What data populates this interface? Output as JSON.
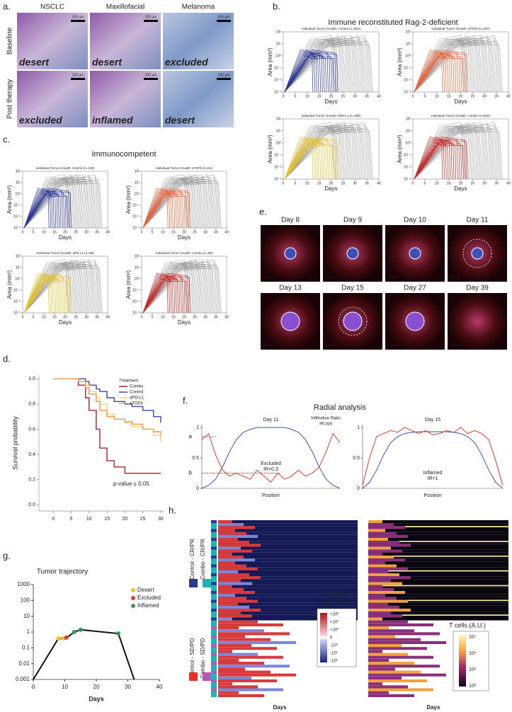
{
  "panel_a": {
    "label": "a.",
    "columns": [
      "NSCLC",
      "Maxillofacial",
      "Melanoma"
    ],
    "rows": [
      "Baseline",
      "Post therapy"
    ],
    "tags": [
      [
        "desert",
        "desert",
        "excluded"
      ],
      [
        "excluded",
        "inflamed",
        "desert"
      ]
    ],
    "scale_bars": [
      [
        "100 µm",
        "100 µm",
        "200 µm"
      ],
      [
        "100 µm",
        "100 µm",
        "100 µm"
      ]
    ]
  },
  "panel_b": {
    "label": "b.",
    "title": "Immune reconstituted Rag-2-deficient",
    "x_label": "Days",
    "y_label": "Area (mm²)",
    "xlim": [
      0,
      40
    ],
    "xticks": [
      0,
      5,
      10,
      15,
      20,
      25,
      30,
      35,
      40
    ],
    "ylim": [
      0.001,
      100
    ],
    "log_y": true,
    "yticks": [
      {
        "value": 0.001,
        "label": "10⁻³"
      },
      {
        "value": 0.01,
        "label": "10⁻²"
      },
      {
        "value": 0.1,
        "label": "10⁻¹"
      },
      {
        "value": 1,
        "label": "10⁰"
      },
      {
        "value": 10,
        "label": "10¹"
      },
      {
        "value": 100,
        "label": "10²"
      }
    ],
    "plots": [
      {
        "title": "Individual Tumor Growth: Control (n=554)",
        "color": "#2b3896"
      },
      {
        "title": "Individual Tumor Growth: aTGFb (n=287)",
        "color": "#e8643a"
      },
      {
        "title": "Individual Tumor Growth: aPD-L1 (n=399)",
        "color": "#e6c229"
      },
      {
        "title": "Individual Tumor Growth: Combo (n=842)",
        "color": "#c62828"
      }
    ]
  },
  "panel_c": {
    "label": "c.",
    "title": "Immunocompetent",
    "x_label": "Days",
    "y_label": "Area (mm²)",
    "xlim": [
      0,
      40
    ],
    "xticks": [
      0,
      5,
      10,
      15,
      20,
      25,
      30,
      35,
      40
    ],
    "ylim": [
      0.001,
      100
    ],
    "log_y": true,
    "yticks": [
      {
        "value": 0.001,
        "label": "10⁻³"
      },
      {
        "value": 0.01,
        "label": "10⁻²"
      },
      {
        "value": 0.1,
        "label": "10⁻¹"
      },
      {
        "value": 1,
        "label": "10⁰"
      },
      {
        "value": 10,
        "label": "10¹"
      },
      {
        "value": 100,
        "label": "10²"
      }
    ],
    "plots": [
      {
        "title": "Individual Tumor Growth: Control (n=130)",
        "color": "#2b3896"
      },
      {
        "title": "Individual Tumor Growth: aTGFb (n=61)",
        "color": "#e8643a"
      },
      {
        "title": "Individual Tumor Growth: aPD-L1 (n=59)",
        "color": "#e6c229"
      },
      {
        "title": "Individual Tumor Growth: Combo (n=69)",
        "color": "#c62828"
      }
    ]
  },
  "panel_e": {
    "label": "e.",
    "days": [
      "Day 8",
      "Day 9",
      "Day 10",
      "Day 11",
      "Day 13",
      "Day 15",
      "Day 27",
      "Day 39"
    ],
    "scale_bar": "500 µm"
  },
  "panel_d": {
    "label": "d.",
    "type": "step",
    "y_label": "Survival probability",
    "legend_title": "Treatment",
    "annotation": "p-value ≤ 0.05",
    "x": [
      0,
      5,
      7,
      9,
      10,
      12,
      13,
      15,
      17,
      20,
      22,
      25,
      28,
      30
    ],
    "xlim": [
      -4,
      31
    ],
    "xticks": [
      0,
      5,
      10,
      15,
      20,
      25,
      30
    ],
    "ylim": [
      -0.05,
      1.03
    ],
    "yticks": [
      {
        "value": 0,
        "label": "0.0"
      },
      {
        "value": 0.2,
        "label": "0.2"
      },
      {
        "value": 0.4,
        "label": "0.4"
      },
      {
        "value": 0.6,
        "label": "0.6"
      },
      {
        "value": 0.8,
        "label": "0.8"
      },
      {
        "value": 1,
        "label": "1.0"
      }
    ],
    "series": [
      {
        "name": "Combo",
        "color": "#a3262a",
        "values": [
          1,
          1,
          0.95,
          0.85,
          0.75,
          0.6,
          0.45,
          0.35,
          0.3,
          0.25,
          0.25,
          0.25,
          0.25,
          0.25
        ]
      },
      {
        "name": "Control",
        "color": "#3b4a9c",
        "values": [
          1,
          1,
          1,
          0.98,
          0.95,
          0.92,
          0.9,
          0.85,
          0.82,
          0.8,
          0.78,
          0.75,
          0.7,
          0.65
        ]
      },
      {
        "name": "aPD-L1",
        "color": "#f2d27a",
        "values": [
          1,
          1,
          0.98,
          0.95,
          0.9,
          0.85,
          0.8,
          0.72,
          0.68,
          0.65,
          0.62,
          0.6,
          0.55,
          0.5
        ]
      },
      {
        "name": "aTGFb",
        "color": "#ef9a4a",
        "values": [
          1,
          1,
          0.98,
          0.93,
          0.88,
          0.82,
          0.75,
          0.7,
          0.68,
          0.66,
          0.64,
          0.6,
          0.58,
          0.55
        ]
      }
    ]
  },
  "panel_f": {
    "label": "f.",
    "title": "Radial analysis",
    "x_label": "Position",
    "ylim": [
      0,
      1
    ],
    "yticks": [
      0,
      0.5,
      1
    ],
    "ratio_title": "Infiltration Ratio",
    "ratio_formula": "IR=a/b",
    "level_names": [
      "a",
      "b"
    ],
    "levels": [
      0.85,
      0.25
    ],
    "plots": [
      {
        "title": "Day 11",
        "state": "Excluded",
        "ratio": "IR=0.3",
        "blue": [
          0,
          0.05,
          0.15,
          0.35,
          0.6,
          0.8,
          0.92,
          0.97,
          1,
          1,
          1,
          1,
          1,
          0.97,
          0.92,
          0.8,
          0.6,
          0.35,
          0.15,
          0.05,
          0
        ],
        "red": [
          0.8,
          0.9,
          0.55,
          0.3,
          0.2,
          0.25,
          0.2,
          0.15,
          0.3,
          0.2,
          0.1,
          0.25,
          0.15,
          0.2,
          0.3,
          0.2,
          0.25,
          0.35,
          0.6,
          0.9,
          0.75
        ]
      },
      {
        "title": "Day 15",
        "state": "Inflamed",
        "ratio": "IR=1",
        "blue": [
          0,
          0.1,
          0.3,
          0.55,
          0.75,
          0.85,
          0.9,
          0.92,
          0.93,
          0.93,
          0.93,
          0.93,
          0.93,
          0.92,
          0.9,
          0.85,
          0.75,
          0.55,
          0.3,
          0.1,
          0
        ],
        "red": [
          0.05,
          0.5,
          0.85,
          0.9,
          0.95,
          0.92,
          1,
          0.95,
          0.9,
          0.95,
          0.88,
          0.9,
          0.95,
          0.92,
          1,
          0.9,
          0.95,
          0.9,
          0.8,
          0.45,
          0.05
        ]
      }
    ]
  },
  "panel_g": {
    "label": "g.",
    "type": "line",
    "title": "Tumor trajectory",
    "x_label": "Days",
    "log_y": true,
    "xlim": [
      0,
      40
    ],
    "xticks": [
      0,
      10,
      20,
      30,
      40
    ],
    "ylim": [
      0.001,
      1000
    ],
    "yticks": [
      0.001,
      0.01,
      0.1,
      1,
      10,
      100,
      1000
    ],
    "x": [
      0,
      8,
      10,
      11,
      13,
      15,
      27,
      32
    ],
    "values": [
      0.001,
      0.4,
      0.35,
      0.5,
      1,
      1.4,
      0.8,
      0.001
    ],
    "markers": [
      {
        "name": "Desert",
        "color": "#f2c12e",
        "x": [
          8,
          9.5
        ],
        "values": [
          0.4,
          0.4
        ]
      },
      {
        "name": "Excluded",
        "color": "#e53935",
        "x": [
          10.5
        ],
        "values": [
          0.45
        ]
      },
      {
        "name": "Inflamed",
        "color": "#2e9e4f",
        "x": [
          13,
          15,
          27
        ],
        "values": [
          1,
          1.4,
          0.8
        ]
      }
    ]
  },
  "panel_h": {
    "label": "h.",
    "x_label": "Days",
    "groups": [
      "Control - CR/PR",
      "Combo - CR/PR",
      "Control - SD/PD",
      "Combo - SD/PD"
    ],
    "group_colors": [
      "#2b3896",
      "#1fb5b5",
      "#e8302b",
      "#b35ab8"
    ],
    "growth_title": "Growth",
    "growth_unit": "(mm²/day)",
    "growth_labels": [
      "+10²",
      "+10¹",
      "+10⁰",
      "0",
      "-10⁰",
      "-10¹",
      "-10²"
    ],
    "tcell_title": "T cells (A.U.)",
    "tcell_labels": [
      "10⁵",
      "10⁴",
      "10³",
      "10²"
    ]
  }
}
